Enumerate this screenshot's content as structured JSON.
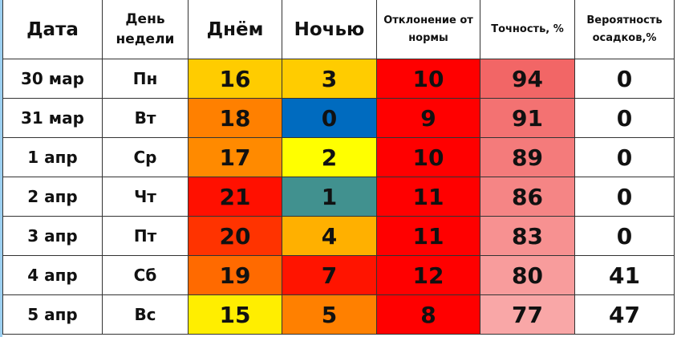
{
  "headers": [
    "Дата",
    "День недели",
    "Днём",
    "Ночью",
    "Отклонение от нормы",
    "Точность, %",
    "Вероятность осадков,%"
  ],
  "rows": [
    {
      "date": "30 мар",
      "weekday": "Пн",
      "day": "16",
      "night": "3",
      "deviation": "10",
      "accuracy": "94",
      "precip": "0",
      "day_color": "#FFCC00",
      "night_color": "#FFCC00",
      "deviation_color": "#FF0000",
      "accuracy_color": "#F26666"
    },
    {
      "date": "31 мар",
      "weekday": "Вт",
      "day": "18",
      "night": "0",
      "deviation": "9",
      "accuracy": "91",
      "precip": "0",
      "day_color": "#FF8000",
      "night_color": "#006BBF",
      "deviation_color": "#FF0000",
      "accuracy_color": "#F37272"
    },
    {
      "date": "1 апр",
      "weekday": "Ср",
      "day": "17",
      "night": "2",
      "deviation": "10",
      "accuracy": "89",
      "precip": "0",
      "day_color": "#FF8A00",
      "night_color": "#FFFF00",
      "deviation_color": "#FF0000",
      "accuracy_color": "#F47B7B"
    },
    {
      "date": "2 апр",
      "weekday": "Чт",
      "day": "21",
      "night": "1",
      "deviation": "11",
      "accuracy": "86",
      "precip": "0",
      "day_color": "#FF1000",
      "night_color": "#41918F",
      "deviation_color": "#FF0000",
      "accuracy_color": "#F58585"
    },
    {
      "date": "3 апр",
      "weekday": "Пт",
      "day": "20",
      "night": "4",
      "deviation": "11",
      "accuracy": "83",
      "precip": "0",
      "day_color": "#FF3300",
      "night_color": "#FFB000",
      "deviation_color": "#FF0000",
      "accuracy_color": "#F79191"
    },
    {
      "date": "4 апр",
      "weekday": "Сб",
      "day": "19",
      "night": "7",
      "deviation": "12",
      "accuracy": "80",
      "precip": "41",
      "day_color": "#FF6A00",
      "night_color": "#FF1400",
      "deviation_color": "#FF0000",
      "accuracy_color": "#F89C9C"
    },
    {
      "date": "5 апр",
      "weekday": "Вс",
      "day": "15",
      "night": "5",
      "deviation": "8",
      "accuracy": "77",
      "precip": "47",
      "day_color": "#FFEE00",
      "night_color": "#FF8000",
      "deviation_color": "#FF0000",
      "accuracy_color": "#F9A7A7"
    }
  ]
}
